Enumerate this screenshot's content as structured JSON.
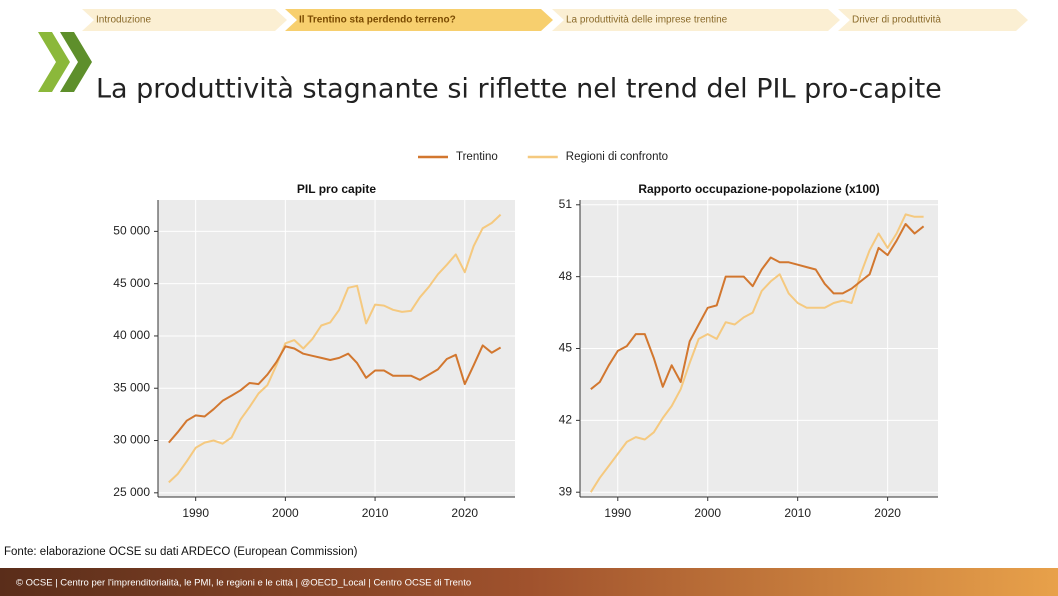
{
  "nav": {
    "items": [
      "Introduzione",
      "Il Trentino sta perdendo terreno?",
      "La produttività delle imprese trentine",
      "Driver di produttività"
    ],
    "active": 1
  },
  "title": "La produttività stagnante si riflette nel trend del PIL pro-capite",
  "source": "Fonte: elaborazione OCSE su dati ARDECO (European Commission)",
  "footer": "© OCSE | Centro per l'imprenditorialità, le PMI, le regioni e le città | @OECD_Local | Centro OCSE di Trento",
  "chart_data": [
    {
      "type": "line",
      "title": "PIL pro capite",
      "x": [
        1987,
        1988,
        1989,
        1990,
        1991,
        1992,
        1993,
        1994,
        1995,
        1996,
        1997,
        1998,
        1999,
        2000,
        2001,
        2002,
        2003,
        2004,
        2005,
        2006,
        2007,
        2008,
        2009,
        2010,
        2011,
        2012,
        2013,
        2014,
        2015,
        2016,
        2017,
        2018,
        2019,
        2020,
        2021,
        2022,
        2023,
        2024
      ],
      "series": [
        {
          "name": "Trentino",
          "color": "#d2772f",
          "values": [
            29800,
            30800,
            31900,
            32400,
            32300,
            33000,
            33800,
            34300,
            34800,
            35500,
            35400,
            36300,
            37500,
            39000,
            38800,
            38300,
            38100,
            37900,
            37700,
            37900,
            38300,
            37400,
            36000,
            36700,
            36700,
            36200,
            36200,
            36200,
            35800,
            36300,
            36800,
            37800,
            38200,
            35400,
            37200,
            39100,
            38400,
            38900
          ]
        },
        {
          "name": "Regioni di confronto",
          "color": "#f5c97f",
          "values": [
            26000,
            26800,
            28000,
            29300,
            29800,
            30000,
            29700,
            30300,
            32000,
            33200,
            34500,
            35300,
            37200,
            39300,
            39600,
            38800,
            39700,
            41000,
            41300,
            42500,
            44600,
            44800,
            41200,
            43000,
            42900,
            42500,
            42300,
            42400,
            43700,
            44700,
            45900,
            46800,
            47800,
            46100,
            48600,
            50300,
            50800,
            51600
          ]
        }
      ],
      "xlim": [
        1985.8,
        2025.6
      ],
      "xticks": [
        1990,
        2000,
        2010,
        2020
      ],
      "ylim": [
        24600,
        53000
      ],
      "yticks": [
        {
          "value": 25000,
          "label": "25 000"
        },
        {
          "value": 30000,
          "label": "30 000"
        },
        {
          "value": 35000,
          "label": "35 000"
        },
        {
          "value": 40000,
          "label": "40 000"
        },
        {
          "value": 45000,
          "label": "45 000"
        },
        {
          "value": 50000,
          "label": "50 000"
        }
      ],
      "grid": true
    },
    {
      "type": "line",
      "title": "Rapporto occupazione-popolazione (x100)",
      "x": [
        1987,
        1988,
        1989,
        1990,
        1991,
        1992,
        1993,
        1994,
        1995,
        1996,
        1997,
        1998,
        1999,
        2000,
        2001,
        2002,
        2003,
        2004,
        2005,
        2006,
        2007,
        2008,
        2009,
        2010,
        2011,
        2012,
        2013,
        2014,
        2015,
        2016,
        2017,
        2018,
        2019,
        2020,
        2021,
        2022,
        2023,
        2024
      ],
      "series": [
        {
          "color": "#d2772f",
          "values": [
            43.3,
            43.6,
            44.3,
            44.9,
            45.1,
            45.6,
            45.6,
            44.6,
            43.4,
            44.3,
            43.6,
            45.3,
            46.0,
            46.7,
            46.8,
            48.0,
            48.0,
            48.0,
            47.6,
            48.3,
            48.8,
            48.6,
            48.6,
            48.5,
            48.4,
            48.3,
            47.7,
            47.3,
            47.3,
            47.5,
            47.8,
            48.1,
            49.2,
            48.9,
            49.5,
            50.2,
            49.8,
            50.1
          ]
        },
        {
          "color": "#f5c97f",
          "values": [
            39.0,
            39.6,
            40.1,
            40.6,
            41.1,
            41.3,
            41.2,
            41.5,
            42.1,
            42.6,
            43.3,
            44.4,
            45.4,
            45.6,
            45.4,
            46.1,
            46.0,
            46.3,
            46.5,
            47.4,
            47.8,
            48.1,
            47.3,
            46.9,
            46.7,
            46.7,
            46.7,
            46.9,
            47.0,
            46.9,
            48.1,
            49.1,
            49.8,
            49.2,
            49.8,
            50.6,
            50.5,
            50.5
          ]
        }
      ],
      "xlim": [
        1985.8,
        2025.6
      ],
      "xticks": [
        1990,
        2000,
        2010,
        2020
      ],
      "ylim": [
        38.8,
        51.2
      ],
      "yticks": [
        39,
        42,
        45,
        48,
        51
      ],
      "grid": true
    }
  ]
}
